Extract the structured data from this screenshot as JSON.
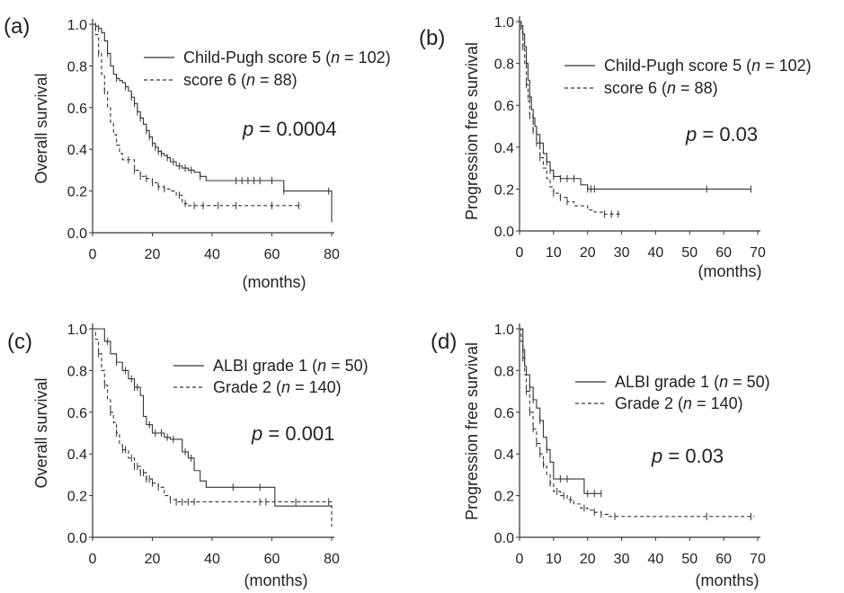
{
  "chart_data": [
    {
      "type": "line",
      "panel_label": "(a)",
      "ylabel": "Overall survival",
      "xlabel": "(months)",
      "xlim": [
        0,
        80
      ],
      "ylim": [
        0,
        1.0
      ],
      "xticks": [
        "0",
        "20",
        "40",
        "60",
        "80"
      ],
      "yticks": [
        "0.0",
        "0.2",
        "0.4",
        "0.6",
        "0.8",
        "1.0"
      ],
      "legend": [
        {
          "pre": "Child-Pugh score 5 (",
          "n": "n",
          "post": " = 102)",
          "style": "solid"
        },
        {
          "pre": "score 6 (",
          "n": "n",
          "post": " = 88)",
          "style": "dashed"
        }
      ],
      "pvalue": {
        "p": "p",
        "text": " = 0.0004"
      },
      "series": [
        {
          "style": "solid",
          "x": [
            0,
            1,
            2,
            3,
            4,
            5,
            6,
            7,
            8,
            9,
            10,
            11,
            12,
            13,
            14,
            15,
            16,
            17,
            18,
            19,
            20,
            21,
            22,
            23,
            24,
            25,
            26,
            28,
            30,
            32,
            34,
            36,
            38,
            45,
            55,
            60,
            64,
            70,
            80
          ],
          "y": [
            1.0,
            0.99,
            0.98,
            0.96,
            0.92,
            0.86,
            0.8,
            0.76,
            0.74,
            0.73,
            0.72,
            0.7,
            0.68,
            0.65,
            0.62,
            0.58,
            0.55,
            0.52,
            0.49,
            0.46,
            0.43,
            0.41,
            0.39,
            0.38,
            0.37,
            0.36,
            0.34,
            0.32,
            0.31,
            0.3,
            0.29,
            0.27,
            0.25,
            0.25,
            0.25,
            0.25,
            0.2,
            0.2,
            0.05
          ],
          "censor_x": [
            1,
            2,
            5,
            8,
            11,
            13,
            14,
            15,
            16,
            18,
            19,
            20,
            21,
            22,
            23,
            25,
            27,
            29,
            31,
            33,
            36,
            48,
            50,
            52,
            54,
            56,
            60,
            64,
            79
          ]
        },
        {
          "style": "dashed",
          "x": [
            0,
            1,
            2,
            3,
            4,
            5,
            6,
            7,
            8,
            9,
            10,
            12,
            14,
            16,
            18,
            20,
            22,
            24,
            26,
            28,
            30,
            32,
            35,
            40,
            50,
            60,
            70
          ],
          "y": [
            1.0,
            0.95,
            0.86,
            0.76,
            0.68,
            0.6,
            0.53,
            0.47,
            0.42,
            0.38,
            0.35,
            0.35,
            0.3,
            0.27,
            0.26,
            0.24,
            0.22,
            0.21,
            0.2,
            0.18,
            0.14,
            0.13,
            0.13,
            0.13,
            0.13,
            0.13,
            0.13
          ],
          "censor_x": [
            2,
            4,
            12,
            14,
            16,
            18,
            20,
            22,
            24,
            29,
            31,
            34,
            37,
            42,
            48,
            60,
            69
          ]
        }
      ]
    },
    {
      "type": "line",
      "panel_label": "(b)",
      "ylabel": "Progression free survival",
      "xlabel": "(months)",
      "xlim": [
        0,
        70
      ],
      "ylim": [
        0,
        1.0
      ],
      "xticks": [
        "0",
        "10",
        "20",
        "30",
        "40",
        "50",
        "60",
        "70"
      ],
      "yticks": [
        "0.0",
        "0.2",
        "0.4",
        "0.6",
        "0.8",
        "1.0"
      ],
      "legend": [
        {
          "pre": "Child-Pugh score 5 (",
          "n": "n",
          "post": " = 102)",
          "style": "solid"
        },
        {
          "pre": "score 6 (",
          "n": "n",
          "post": " = 88)",
          "style": "dashed"
        }
      ],
      "pvalue": {
        "p": "p",
        "text": " = 0.03"
      },
      "series": [
        {
          "style": "solid",
          "x": [
            0,
            0.5,
            1,
            1.5,
            2,
            2.5,
            3,
            3.5,
            4,
            4.5,
            5,
            6,
            7,
            8,
            9,
            10,
            12,
            14,
            16,
            18,
            20,
            30,
            40,
            50,
            60,
            68
          ],
          "y": [
            1.0,
            0.98,
            0.94,
            0.88,
            0.8,
            0.72,
            0.64,
            0.58,
            0.54,
            0.5,
            0.46,
            0.42,
            0.37,
            0.33,
            0.29,
            0.26,
            0.25,
            0.25,
            0.25,
            0.22,
            0.2,
            0.2,
            0.2,
            0.2,
            0.2,
            0.2
          ],
          "censor_x": [
            0.5,
            1,
            2,
            3,
            4,
            5,
            6,
            8,
            9,
            10,
            12,
            14,
            16,
            20,
            21,
            22,
            55,
            68
          ]
        },
        {
          "style": "dashed",
          "x": [
            0,
            0.5,
            1,
            1.5,
            2,
            2.5,
            3,
            4,
            5,
            6,
            7,
            8,
            9,
            10,
            12,
            14,
            16,
            18,
            20,
            22,
            25,
            30
          ],
          "y": [
            1.0,
            0.95,
            0.88,
            0.8,
            0.7,
            0.62,
            0.55,
            0.48,
            0.42,
            0.35,
            0.3,
            0.25,
            0.21,
            0.18,
            0.16,
            0.14,
            0.12,
            0.12,
            0.1,
            0.09,
            0.08,
            0.08
          ],
          "censor_x": [
            1,
            2,
            3,
            4,
            5,
            6,
            10,
            12,
            14,
            25,
            27,
            29
          ]
        }
      ]
    },
    {
      "type": "line",
      "panel_label": "(c)",
      "ylabel": "Overall survival",
      "xlabel": "(months)",
      "xlim": [
        0,
        80
      ],
      "ylim": [
        0,
        1.0
      ],
      "xticks": [
        "0",
        "20",
        "40",
        "60",
        "80"
      ],
      "yticks": [
        "0.0",
        "0.2",
        "0.4",
        "0.6",
        "0.8",
        "1.0"
      ],
      "legend": [
        {
          "pre": "ALBI grade 1 (",
          "n": "n",
          "post": " = 50)",
          "style": "solid"
        },
        {
          "pre": "Grade 2 (",
          "n": "n",
          "post": " = 140)",
          "style": "dashed"
        }
      ],
      "pvalue": {
        "p": "p",
        "text": " = 0.001"
      },
      "series": [
        {
          "style": "solid",
          "x": [
            0,
            3,
            4,
            6,
            8,
            10,
            12,
            14,
            16,
            17,
            18,
            20,
            22,
            24,
            26,
            28,
            30,
            32,
            34,
            36,
            38,
            40,
            50,
            60,
            61,
            80
          ],
          "y": [
            1.0,
            1.0,
            0.94,
            0.88,
            0.84,
            0.8,
            0.76,
            0.72,
            0.68,
            0.58,
            0.54,
            0.5,
            0.5,
            0.48,
            0.47,
            0.47,
            0.41,
            0.38,
            0.32,
            0.27,
            0.24,
            0.24,
            0.24,
            0.24,
            0.15,
            0.15
          ],
          "censor_x": [
            5,
            8,
            11,
            13,
            14,
            15,
            19,
            21,
            23,
            25,
            27,
            31,
            33,
            47,
            56
          ]
        },
        {
          "style": "dashed",
          "x": [
            0,
            1,
            2,
            3,
            4,
            5,
            6,
            7,
            8,
            9,
            10,
            12,
            14,
            16,
            18,
            20,
            22,
            24,
            26,
            28,
            30,
            32,
            35,
            40,
            50,
            60,
            70,
            80
          ],
          "y": [
            1.0,
            0.95,
            0.88,
            0.8,
            0.73,
            0.66,
            0.6,
            0.55,
            0.5,
            0.45,
            0.42,
            0.38,
            0.34,
            0.31,
            0.28,
            0.26,
            0.24,
            0.2,
            0.18,
            0.17,
            0.17,
            0.17,
            0.17,
            0.17,
            0.17,
            0.17,
            0.17,
            0.05
          ],
          "censor_x": [
            2,
            4,
            6,
            8,
            10,
            11,
            13,
            14,
            15,
            16,
            17,
            18,
            19,
            20,
            22,
            26,
            28,
            30,
            32,
            34,
            56,
            58,
            68,
            79
          ]
        }
      ]
    },
    {
      "type": "line",
      "panel_label": "(d)",
      "ylabel": "Progression free survival",
      "xlabel": "(months)",
      "xlim": [
        0,
        70
      ],
      "ylim": [
        0,
        1.0
      ],
      "xticks": [
        "0",
        "10",
        "20",
        "30",
        "40",
        "50",
        "60",
        "70"
      ],
      "yticks": [
        "0.0",
        "0.2",
        "0.4",
        "0.6",
        "0.8",
        "1.0"
      ],
      "legend": [
        {
          "pre": "ALBI grade 1 (",
          "n": "n",
          "post": " = 50)",
          "style": "solid"
        },
        {
          "pre": "Grade 2 (",
          "n": "n",
          "post": " = 140)",
          "style": "dashed"
        }
      ],
      "pvalue": {
        "p": "p",
        "text": " = 0.03"
      },
      "series": [
        {
          "style": "solid",
          "x": [
            0,
            1,
            1.5,
            2,
            3,
            4,
            5,
            6,
            7,
            8,
            9,
            10,
            12,
            14,
            16,
            18,
            19,
            24
          ],
          "y": [
            1.0,
            0.9,
            0.82,
            0.78,
            0.72,
            0.66,
            0.62,
            0.56,
            0.48,
            0.42,
            0.36,
            0.28,
            0.28,
            0.28,
            0.28,
            0.28,
            0.21,
            0.21
          ],
          "censor_x": [
            1,
            3,
            4,
            6,
            8,
            12,
            14,
            20,
            22,
            24
          ]
        },
        {
          "style": "dashed",
          "x": [
            0,
            0.5,
            1,
            1.5,
            2,
            3,
            4,
            5,
            6,
            7,
            8,
            9,
            10,
            12,
            14,
            16,
            18,
            20,
            22,
            24,
            26,
            30,
            40,
            50,
            60,
            69
          ],
          "y": [
            1.0,
            0.94,
            0.86,
            0.78,
            0.7,
            0.6,
            0.52,
            0.45,
            0.4,
            0.35,
            0.3,
            0.26,
            0.22,
            0.2,
            0.18,
            0.16,
            0.14,
            0.13,
            0.12,
            0.11,
            0.1,
            0.1,
            0.1,
            0.1,
            0.1,
            0.1
          ],
          "censor_x": [
            1,
            2,
            3,
            4,
            5,
            6,
            7,
            9,
            11,
            13,
            15,
            19,
            22,
            24,
            28,
            55,
            68
          ]
        }
      ]
    }
  ]
}
